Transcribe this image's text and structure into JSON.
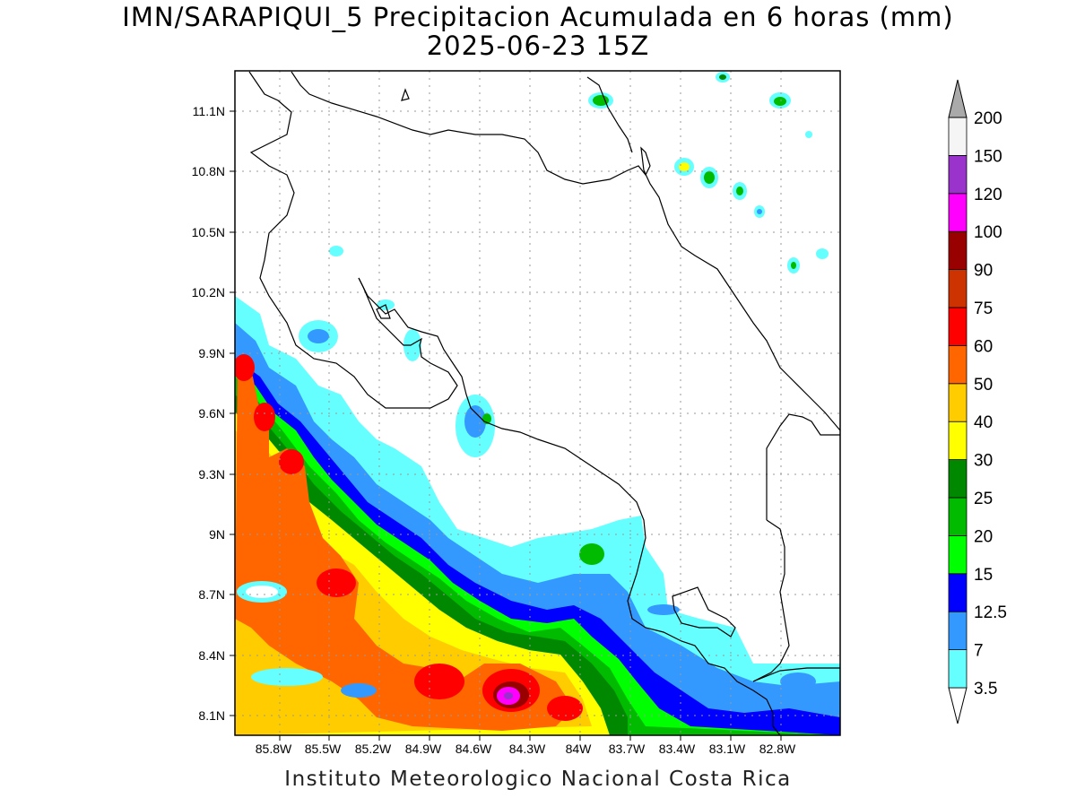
{
  "title": {
    "line1": "IMN/SARAPIQUI_5 Precipitacion Acumulada en 6 horas (mm)",
    "line2": "2025-06-23 15Z"
  },
  "footer": "Instituto Meteorologico Nacional Costa Rica",
  "map": {
    "lon_ticks": [
      "85.8W",
      "85.5W",
      "85.2W",
      "84.9W",
      "84.6W",
      "84.3W",
      "84W",
      "83.7W",
      "83.4W",
      "83.1W",
      "82.8W"
    ],
    "lat_ticks": [
      "11.1N",
      "10.8N",
      "10.5N",
      "10.2N",
      "9.9N",
      "9.6N",
      "9.3N",
      "9N",
      "8.7N",
      "8.4N",
      "8.1N"
    ]
  },
  "colorbar": {
    "levels": [
      {
        "label": "3.5",
        "color": "#66ffff"
      },
      {
        "label": "7",
        "color": "#3399ff"
      },
      {
        "label": "12.5",
        "color": "#0000ff"
      },
      {
        "label": "15",
        "color": "#00ff00"
      },
      {
        "label": "20",
        "color": "#00bb00"
      },
      {
        "label": "25",
        "color": "#008800"
      },
      {
        "label": "30",
        "color": "#ffff00"
      },
      {
        "label": "40",
        "color": "#ffcc00"
      },
      {
        "label": "50",
        "color": "#ff6600"
      },
      {
        "label": "60",
        "color": "#ff0000"
      },
      {
        "label": "75",
        "color": "#cc3300"
      },
      {
        "label": "90",
        "color": "#990000"
      },
      {
        "label": "100",
        "color": "#ff00ff"
      },
      {
        "label": "120",
        "color": "#9933cc"
      },
      {
        "label": "150",
        "color": "#f5f5f5"
      },
      {
        "label": "200",
        "color": "#aaaaaa"
      }
    ]
  }
}
